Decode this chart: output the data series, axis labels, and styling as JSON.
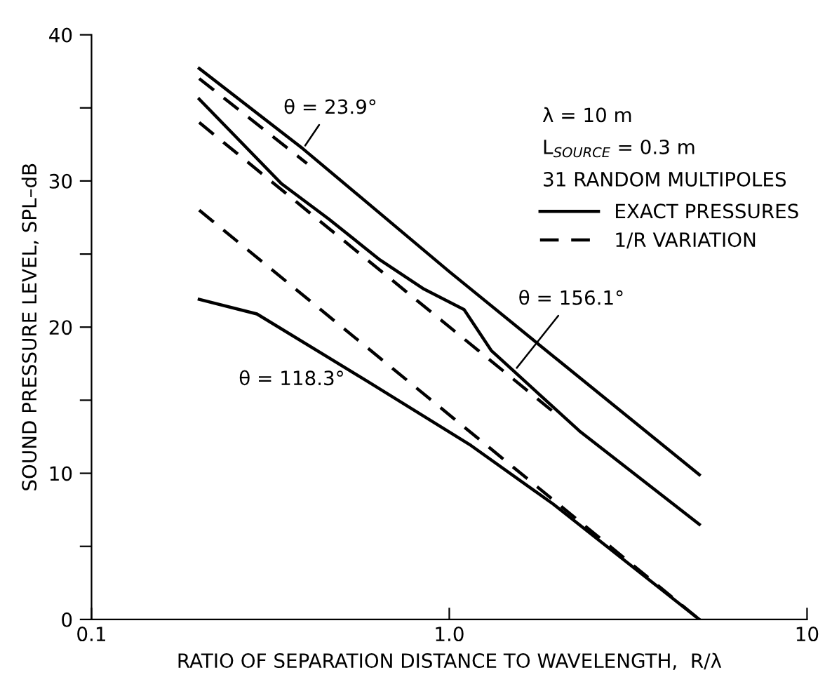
{
  "chart_data": {
    "type": "line",
    "xlabel": "RATIO OF SEPARATION DISTANCE TO WAVELENGTH,  R/λ",
    "ylabel": "SOUND PRESSURE LEVEL, SPL–dB",
    "log": "x",
    "xlim": [
      0.1,
      10
    ],
    "xticks": [
      0.1,
      {
        "value": 1,
        "label": "1.0"
      },
      10
    ],
    "ylim": [
      0,
      40
    ],
    "yticks": [
      0,
      {
        "value": 5,
        "label": null
      },
      10,
      {
        "value": 15,
        "label": null
      },
      20,
      {
        "value": 25,
        "label": null
      },
      30,
      {
        "value": 35,
        "label": null
      },
      40
    ],
    "grid": false,
    "legend": "top right",
    "marker": "none",
    "series": [
      {
        "name": "EXACT PRESSURES",
        "color": "#000000",
        "line_style": "solid",
        "x": [
          0.2,
          0.39,
          1.0,
          2.0,
          5.0
        ],
        "values": [
          37.7,
          32.2,
          23.8,
          17.8,
          9.9
        ]
      },
      {
        "color": "#000000",
        "line_style": "solid",
        "x": [
          0.2,
          0.34,
          0.46,
          0.64,
          0.85,
          1.1,
          1.31,
          2.31,
          5.0
        ],
        "values": [
          35.6,
          29.8,
          27.4,
          24.6,
          22.6,
          21.2,
          18.4,
          12.9,
          6.5
        ]
      },
      {
        "color": "#000000",
        "line_style": "solid",
        "x": [
          0.2,
          0.29,
          0.59,
          1.15,
          1.95,
          5.0
        ],
        "values": [
          21.9,
          20.9,
          16.3,
          11.9,
          7.9,
          0
        ]
      },
      {
        "name": "1/R VARIATION",
        "color": "#000000",
        "line_style": "dashed",
        "x": [
          0.2,
          0.4
        ],
        "values": [
          37.0,
          31.2
        ]
      },
      {
        "color": "#000000",
        "line_style": "dashed",
        "x": [
          0.2,
          2.0
        ],
        "values": [
          34.0,
          14.0
        ]
      },
      {
        "color": "#000000",
        "line_style": "dashed",
        "x": [
          0.2,
          5.0
        ],
        "values": [
          28.0,
          0
        ]
      }
    ],
    "annotations": [
      "λ = 10 m",
      "L$_{SOURCE}$ = 0.3 m",
      "31 RANDOM MULTIPOLES",
      {
        "text": "θ = 23.9°",
        "x": 0.39,
        "y": 32.2
      },
      {
        "text": "θ = 156.1°",
        "x": 1.52,
        "y": 17.0
      },
      {
        "text": "θ = 118.3°",
        "x": 0.59,
        "y": 16.3
      }
    ]
  }
}
